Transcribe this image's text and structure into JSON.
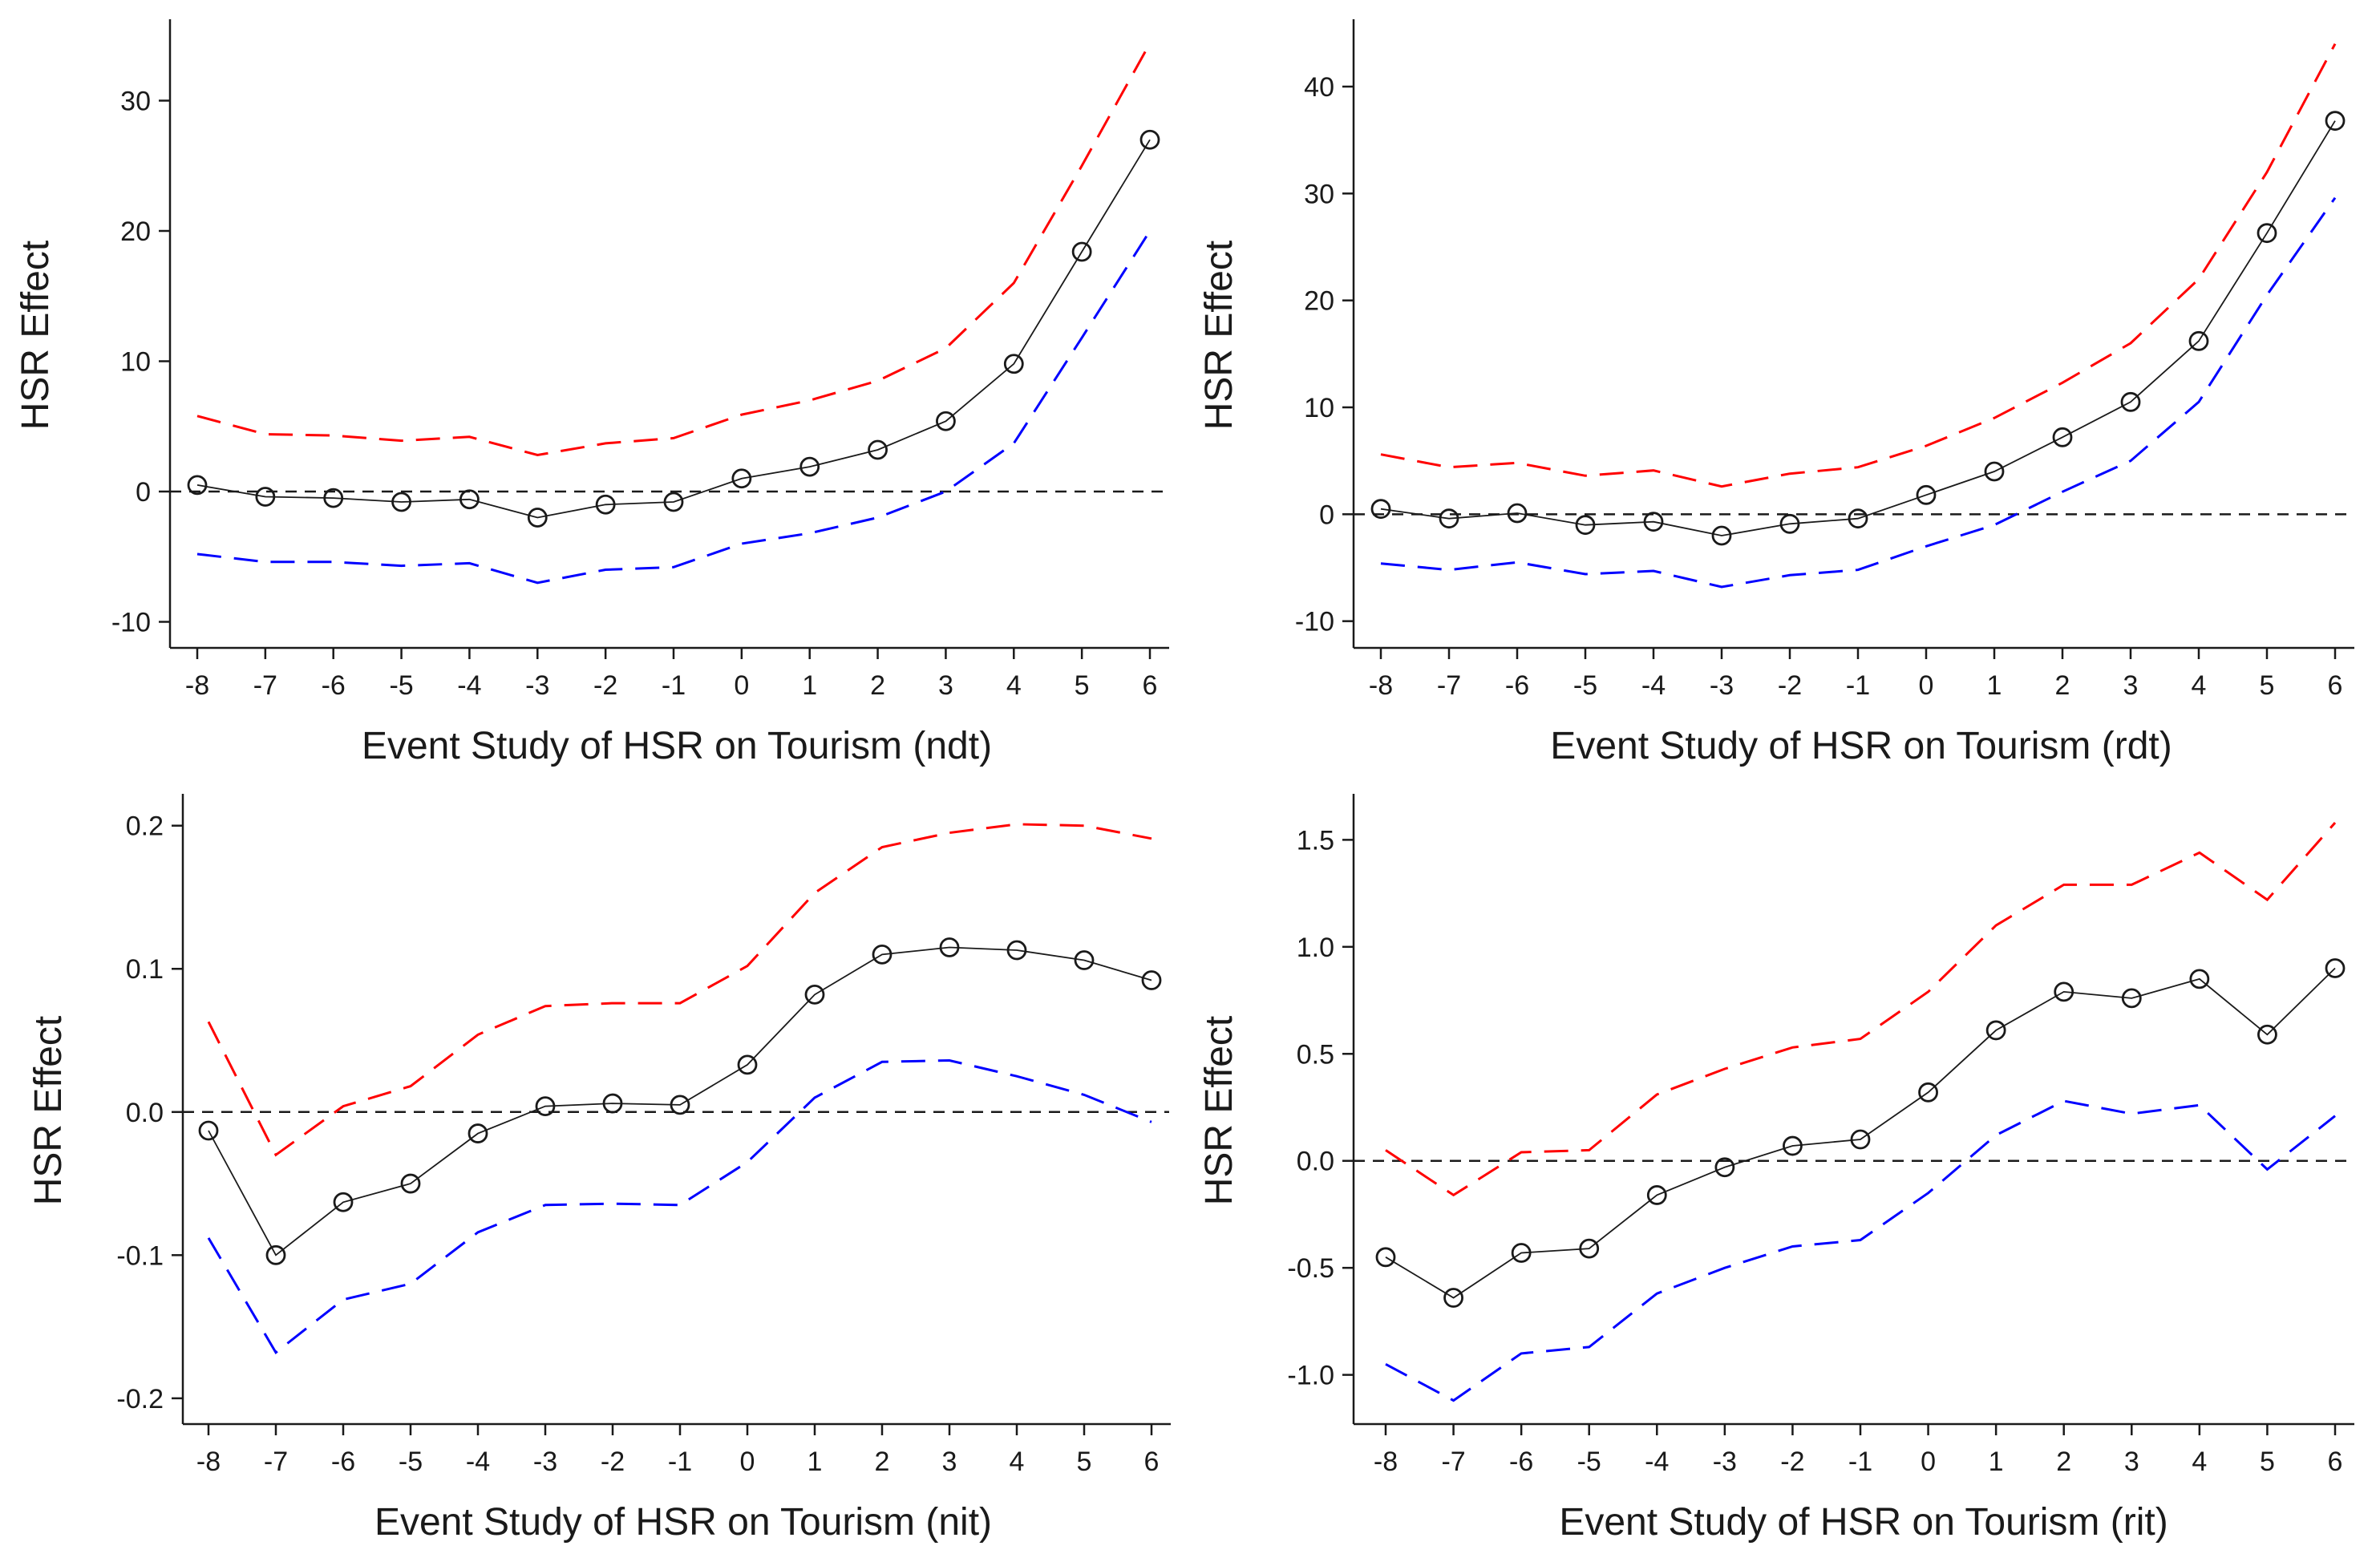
{
  "figure": {
    "panels": 4,
    "colors": {
      "estimate": "#1a1a1a",
      "upper_ci": "#ff0000",
      "lower_ci": "#0000ff",
      "zero_line": "#1a1a1a",
      "axis": "#1a1a1a"
    }
  },
  "chart_data": [
    {
      "id": "ndt",
      "type": "line",
      "title": "",
      "xlabel": "Event Study of HSR on Tourism (ndt)",
      "ylabel": "HSR Effect",
      "x": [
        -8,
        -7,
        -6,
        -5,
        -4,
        -3,
        -2,
        -1,
        0,
        1,
        2,
        3,
        4,
        5,
        6
      ],
      "x_tick_labels": [
        "-8",
        "-7",
        "-6",
        "-5",
        "-4",
        "-3",
        "-2",
        "-1",
        "0",
        "1",
        "2",
        "3",
        "4",
        "5",
        "6"
      ],
      "ylim": [
        -12,
        36
      ],
      "y_ticks": [
        -10,
        0,
        10,
        20,
        30
      ],
      "y_tick_labels": [
        "-10",
        "0",
        "10",
        "20",
        "30"
      ],
      "reference_line": 0,
      "series": [
        {
          "name": "estimate",
          "style": "solid-circles",
          "values": [
            0.5,
            -0.4,
            -0.5,
            -0.8,
            -0.6,
            -2.0,
            -1.0,
            -0.8,
            1.0,
            1.9,
            3.2,
            5.4,
            9.8,
            18.4,
            27.0
          ]
        },
        {
          "name": "upper",
          "style": "dashed",
          "values": [
            5.8,
            4.4,
            4.3,
            3.9,
            4.2,
            2.8,
            3.7,
            4.1,
            5.9,
            7.0,
            8.5,
            11.0,
            16.0,
            25.0,
            34.4
          ]
        },
        {
          "name": "lower",
          "style": "dashed",
          "values": [
            -4.8,
            -5.4,
            -5.4,
            -5.7,
            -5.5,
            -7.0,
            -6.0,
            -5.8,
            -4.0,
            -3.2,
            -2.0,
            0.0,
            3.7,
            11.8,
            20.0
          ]
        }
      ]
    },
    {
      "id": "rdt",
      "type": "line",
      "title": "",
      "xlabel": "Event Study of HSR on Tourism (rdt)",
      "ylabel": "HSR Effect",
      "x": [
        -8,
        -7,
        -6,
        -5,
        -4,
        -3,
        -2,
        -1,
        0,
        1,
        2,
        3,
        4,
        5,
        6
      ],
      "x_tick_labels": [
        "-8",
        "-7",
        "-6",
        "-5",
        "-4",
        "-3",
        "-2",
        "-1",
        "0",
        "1",
        "2",
        "3",
        "4",
        "5",
        "6"
      ],
      "ylim": [
        -12.5,
        46
      ],
      "y_ticks": [
        -10,
        0,
        10,
        20,
        30,
        40
      ],
      "y_tick_labels": [
        "-10",
        "0",
        "10",
        "20",
        "30",
        "40"
      ],
      "reference_line": 0,
      "series": [
        {
          "name": "estimate",
          "style": "solid-circles",
          "values": [
            0.5,
            -0.4,
            0.1,
            -1.0,
            -0.7,
            -2.0,
            -0.9,
            -0.4,
            1.8,
            4.0,
            7.2,
            10.5,
            16.2,
            26.3,
            36.8
          ]
        },
        {
          "name": "upper",
          "style": "dashed",
          "values": [
            5.6,
            4.4,
            4.8,
            3.6,
            4.1,
            2.6,
            3.8,
            4.4,
            6.4,
            9.0,
            12.3,
            16.0,
            22.0,
            32.0,
            44.0
          ]
        },
        {
          "name": "lower",
          "style": "dashed",
          "values": [
            -4.6,
            -5.2,
            -4.5,
            -5.6,
            -5.3,
            -6.8,
            -5.7,
            -5.2,
            -3.0,
            -1.0,
            2.1,
            5.0,
            10.5,
            20.5,
            29.6
          ]
        }
      ]
    },
    {
      "id": "nit",
      "type": "line",
      "title": "",
      "xlabel": "Event Study of HSR on Tourism (nit)",
      "ylabel": "HSR Effect",
      "x": [
        -8,
        -7,
        -6,
        -5,
        -4,
        -3,
        -2,
        -1,
        0,
        1,
        2,
        3,
        4,
        5,
        6
      ],
      "x_tick_labels": [
        "-8",
        "-7",
        "-6",
        "-5",
        "-4",
        "-3",
        "-2",
        "-1",
        "0",
        "1",
        "2",
        "3",
        "4",
        "5",
        "6"
      ],
      "ylim": [
        -0.218,
        0.22
      ],
      "y_ticks": [
        -0.2,
        -0.1,
        0.0,
        0.1,
        0.2
      ],
      "y_tick_labels": [
        "-0.2",
        "-0.1",
        "0.0",
        "0.1",
        "0.2"
      ],
      "reference_line": 0,
      "series": [
        {
          "name": "estimate",
          "style": "solid-circles",
          "values": [
            -0.013,
            -0.1,
            -0.063,
            -0.05,
            -0.015,
            0.004,
            0.006,
            0.005,
            0.033,
            0.082,
            0.11,
            0.115,
            0.113,
            0.106,
            0.092
          ]
        },
        {
          "name": "upper",
          "style": "dashed",
          "values": [
            0.063,
            -0.03,
            0.004,
            0.018,
            0.054,
            0.074,
            0.076,
            0.076,
            0.102,
            0.153,
            0.185,
            0.195,
            0.201,
            0.2,
            0.191
          ]
        },
        {
          "name": "lower",
          "style": "dashed",
          "values": [
            -0.088,
            -0.168,
            -0.131,
            -0.12,
            -0.084,
            -0.065,
            -0.064,
            -0.065,
            -0.035,
            0.01,
            0.035,
            0.036,
            0.025,
            0.012,
            -0.007
          ]
        }
      ]
    },
    {
      "id": "rit",
      "type": "line",
      "title": "",
      "xlabel": "Event Study of HSR on Tourism (rit)",
      "ylabel": "HSR Effect",
      "x": [
        -8,
        -7,
        -6,
        -5,
        -4,
        -3,
        -2,
        -1,
        0,
        1,
        2,
        3,
        4,
        5,
        6
      ],
      "x_tick_labels": [
        "-8",
        "-7",
        "-6",
        "-5",
        "-4",
        "-3",
        "-2",
        "-1",
        "0",
        "1",
        "2",
        "3",
        "4",
        "5",
        "6"
      ],
      "ylim": [
        -1.23,
        1.7
      ],
      "y_ticks": [
        -1.0,
        -0.5,
        0.0,
        0.5,
        1.0,
        1.5
      ],
      "y_tick_labels": [
        "-1.0",
        "-0.5",
        "0.0",
        "0.5",
        "1.0",
        "1.5"
      ],
      "reference_line": 0,
      "series": [
        {
          "name": "estimate",
          "style": "solid-circles",
          "values": [
            -0.45,
            -0.64,
            -0.43,
            -0.41,
            -0.16,
            -0.03,
            0.07,
            0.1,
            0.32,
            0.61,
            0.79,
            0.76,
            0.85,
            0.59,
            0.9
          ]
        },
        {
          "name": "upper",
          "style": "dashed",
          "values": [
            0.05,
            -0.16,
            0.04,
            0.05,
            0.31,
            0.43,
            0.53,
            0.57,
            0.79,
            1.1,
            1.29,
            1.29,
            1.44,
            1.22,
            1.58
          ]
        },
        {
          "name": "lower",
          "style": "dashed",
          "values": [
            -0.95,
            -1.12,
            -0.9,
            -0.87,
            -0.62,
            -0.5,
            -0.4,
            -0.37,
            -0.15,
            0.12,
            0.28,
            0.22,
            0.26,
            -0.04,
            0.21
          ]
        }
      ]
    }
  ]
}
